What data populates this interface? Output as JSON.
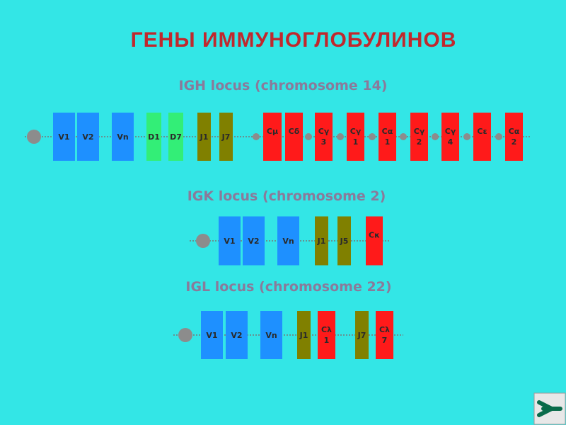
{
  "title": "ГЕНЫ  ИММУНОГЛОБУЛИНОВ",
  "loci": [
    {
      "title": "IGH locus (chromosome 14)",
      "segments": [
        {
          "label": "V1",
          "color": "#1e90ff"
        },
        {
          "label": "V2",
          "color": "#1e90ff"
        },
        {
          "label": "Vn",
          "color": "#1e90ff"
        },
        {
          "label": "D1",
          "color": "#33ee77"
        },
        {
          "label": "D7",
          "color": "#33ee77"
        },
        {
          "label": "J1",
          "color": "#808000"
        },
        {
          "label": "J7",
          "color": "#808000"
        },
        {
          "label": "Cμ",
          "color": "#ff1a1a"
        },
        {
          "label": "Cδ",
          "color": "#ff1a1a"
        },
        {
          "label": "Cγ",
          "number": "3",
          "color": "#ff1a1a"
        },
        {
          "label": "Cγ",
          "number": "1",
          "color": "#ff1a1a"
        },
        {
          "label": "Cα",
          "number": "1",
          "color": "#ff1a1a"
        },
        {
          "label": "Cγ",
          "number": "2",
          "color": "#ff1a1a"
        },
        {
          "label": "Cγ",
          "number": "4",
          "color": "#ff1a1a"
        },
        {
          "label": "Cε",
          "color": "#ff1a1a"
        },
        {
          "label": "Cα",
          "number": "2",
          "color": "#ff1a1a"
        }
      ]
    },
    {
      "title": "IGK locus (chromosome 2)",
      "segments": [
        {
          "label": "V1",
          "color": "#1e90ff"
        },
        {
          "label": "V2",
          "color": "#1e90ff"
        },
        {
          "label": "Vn",
          "color": "#1e90ff"
        },
        {
          "label": "J1",
          "color": "#808000"
        },
        {
          "label": "J5",
          "color": "#808000"
        },
        {
          "label": "Cκ",
          "color": "#ff1a1a"
        }
      ]
    },
    {
      "title": "IGL locus (chromosome 22)",
      "segments": [
        {
          "label": "V1",
          "color": "#1e90ff"
        },
        {
          "label": "V2",
          "color": "#1e90ff"
        },
        {
          "label": "Vn",
          "color": "#1e90ff"
        },
        {
          "label": "J1",
          "color": "#808000"
        },
        {
          "label": "Cλ",
          "number": "1",
          "color": "#ff1a1a"
        },
        {
          "label": "J7",
          "color": "#808000"
        },
        {
          "label": "Cλ",
          "number": "7",
          "color": "#ff1a1a"
        }
      ]
    }
  ]
}
